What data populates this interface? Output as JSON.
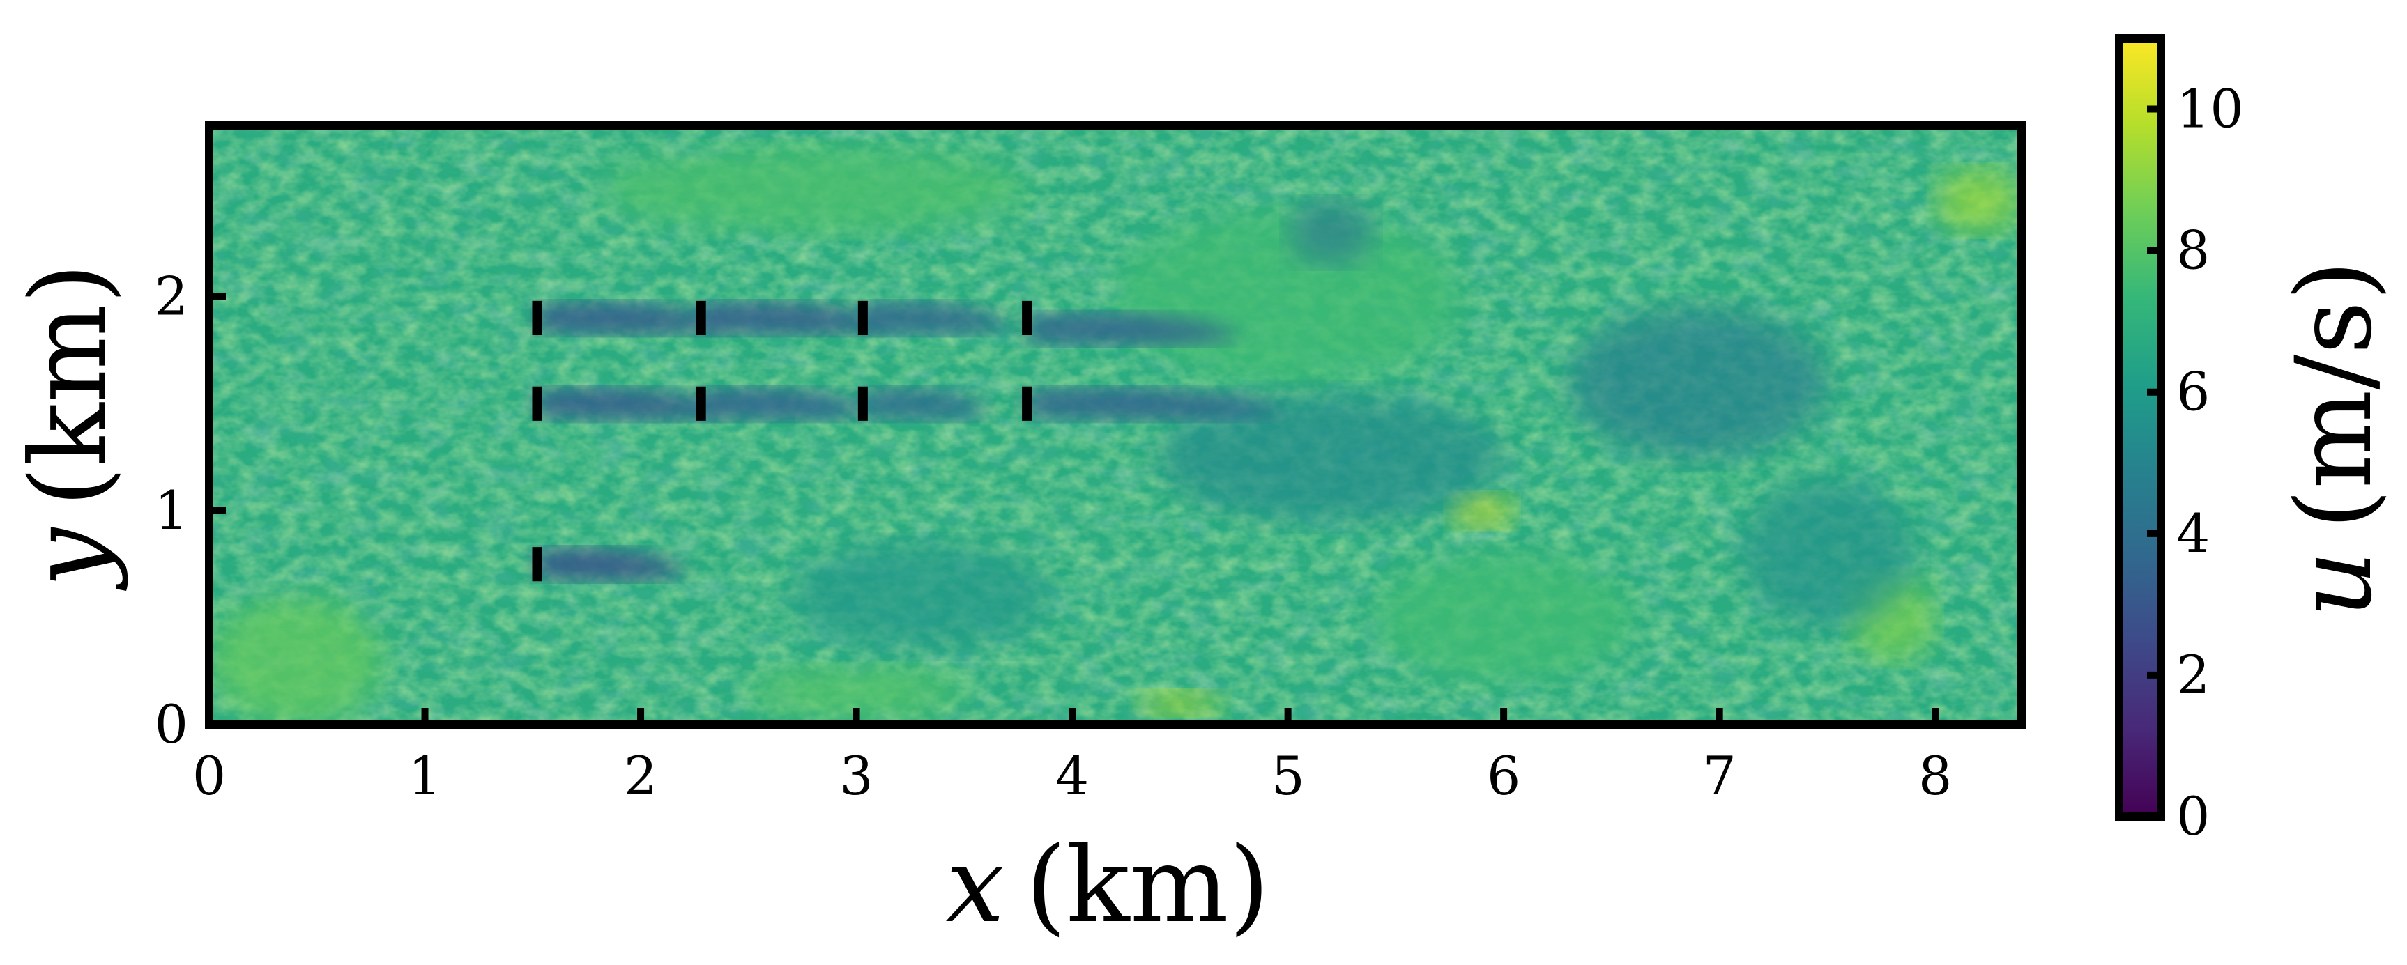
{
  "chart_data": {
    "type": "heatmap",
    "x_label_symbol": "x",
    "x_label_unit": "(km)",
    "y_label_symbol": "y",
    "y_label_unit": "(km)",
    "colorbar_label_symbol": "u",
    "colorbar_label_unit": "(m/s)",
    "xlim": [
      0,
      8.4
    ],
    "ylim": [
      0,
      2.8
    ],
    "x_ticks": [
      0,
      1,
      2,
      3,
      4,
      5,
      6,
      7,
      8
    ],
    "x_tick_labels": [
      "0",
      "1",
      "2",
      "3",
      "4",
      "5",
      "6",
      "7",
      "8"
    ],
    "y_ticks": [
      0,
      1,
      2
    ],
    "y_tick_labels": [
      "0",
      "1",
      "2"
    ],
    "colorbar_range": [
      0,
      11
    ],
    "colorbar_ticks": [
      0,
      2,
      4,
      6,
      8,
      10
    ],
    "colorbar_tick_labels": [
      "0",
      "2",
      "4",
      "6",
      "8",
      "10"
    ],
    "colormap": "viridis",
    "colormap_stops": [
      "#440154",
      "#482878",
      "#3e4989",
      "#31688e",
      "#26828e",
      "#1f9e89",
      "#35b779",
      "#6ece58",
      "#b5de2b",
      "#fde725"
    ],
    "grid": false,
    "turbines": [
      {
        "x": 1.52,
        "y": 1.9
      },
      {
        "x": 2.28,
        "y": 1.9
      },
      {
        "x": 3.03,
        "y": 1.9
      },
      {
        "x": 3.79,
        "y": 1.9
      },
      {
        "x": 1.52,
        "y": 1.5
      },
      {
        "x": 2.28,
        "y": 1.5
      },
      {
        "x": 3.03,
        "y": 1.5
      },
      {
        "x": 3.79,
        "y": 1.5
      },
      {
        "x": 1.52,
        "y": 0.75
      }
    ],
    "background_speed": 6.8,
    "wakes": [
      {
        "x": 1.52,
        "y": 1.9,
        "length": 0.9,
        "deficit": 3.5
      },
      {
        "x": 2.28,
        "y": 1.9,
        "length": 0.9,
        "deficit": 3.5
      },
      {
        "x": 3.03,
        "y": 1.9,
        "length": 0.7,
        "deficit": 3.0
      },
      {
        "x": 3.79,
        "y": 1.85,
        "length": 1.0,
        "deficit": 3.2
      },
      {
        "x": 1.52,
        "y": 1.5,
        "length": 0.9,
        "deficit": 3.5
      },
      {
        "x": 2.28,
        "y": 1.5,
        "length": 0.8,
        "deficit": 3.2
      },
      {
        "x": 3.03,
        "y": 1.5,
        "length": 0.6,
        "deficit": 2.8
      },
      {
        "x": 3.79,
        "y": 1.5,
        "length": 1.2,
        "deficit": 3.2
      },
      {
        "x": 1.52,
        "y": 0.75,
        "length": 0.7,
        "deficit": 3.8
      }
    ],
    "low_speed_regions": [
      {
        "x": 6.9,
        "y": 1.6,
        "rx": 0.6,
        "ry": 0.35,
        "deficit": 2.0
      },
      {
        "x": 5.2,
        "y": 1.25,
        "rx": 0.8,
        "ry": 0.3,
        "deficit": 1.5
      },
      {
        "x": 5.2,
        "y": 2.3,
        "rx": 0.2,
        "ry": 0.15,
        "deficit": 2.2
      },
      {
        "x": 3.3,
        "y": 0.6,
        "rx": 0.6,
        "ry": 0.25,
        "deficit": 1.0
      },
      {
        "x": 7.5,
        "y": 0.8,
        "rx": 0.4,
        "ry": 0.35,
        "deficit": 1.2
      }
    ],
    "high_speed_regions": [
      {
        "x": 8.2,
        "y": 2.45,
        "rx": 0.2,
        "ry": 0.15,
        "boost": 2.5
      },
      {
        "x": 5.9,
        "y": 1.0,
        "rx": 0.15,
        "ry": 0.08,
        "boost": 3.5
      },
      {
        "x": 0.4,
        "y": 0.3,
        "rx": 0.4,
        "ry": 0.3,
        "boost": 1.5
      },
      {
        "x": 7.8,
        "y": 0.5,
        "rx": 0.2,
        "ry": 0.2,
        "boost": 2.0
      },
      {
        "x": 4.5,
        "y": 0.1,
        "rx": 0.2,
        "ry": 0.06,
        "boost": 3.0
      },
      {
        "x": 5.0,
        "y": 2.0,
        "rx": 0.8,
        "ry": 0.4,
        "boost": 0.8
      },
      {
        "x": 2.8,
        "y": 2.5,
        "rx": 1.0,
        "ry": 0.2,
        "boost": 1.0
      },
      {
        "x": 3.0,
        "y": 0.15,
        "rx": 0.5,
        "ry": 0.12,
        "boost": 1.2
      },
      {
        "x": 6.0,
        "y": 0.5,
        "rx": 0.6,
        "ry": 0.3,
        "boost": 0.8
      }
    ]
  }
}
